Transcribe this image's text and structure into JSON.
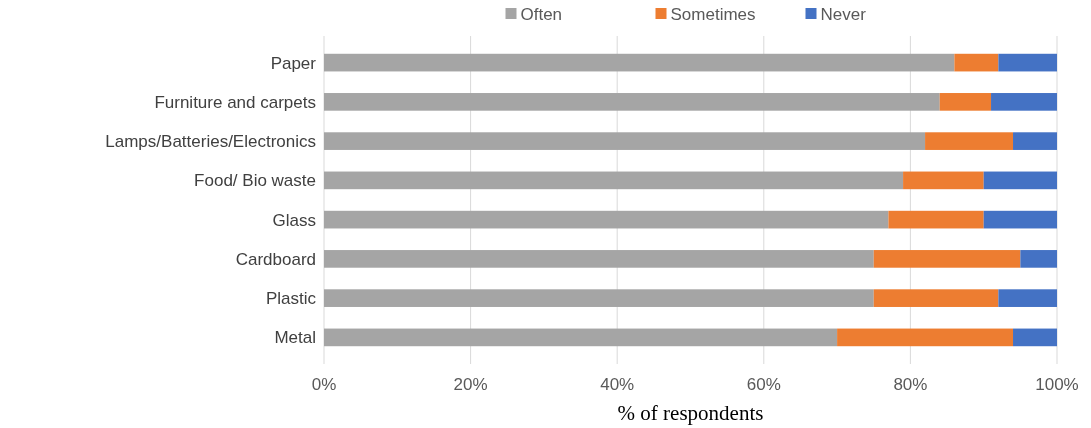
{
  "chart_data": {
    "type": "bar",
    "orientation": "horizontal",
    "stacked": true,
    "xlabel": "% of respondents",
    "categories": [
      "Paper",
      "Furniture and carpets",
      "Lamps/Batteries/Electronics",
      "Food/ Bio waste",
      "Glass",
      "Cardboard",
      "Plastic",
      "Metal"
    ],
    "series": [
      {
        "name": "Often",
        "color": "#a5a5a5",
        "values": [
          86,
          84,
          82,
          79,
          77,
          75,
          75,
          70
        ]
      },
      {
        "name": "Sometimes",
        "color": "#ed7d31",
        "values": [
          6,
          7,
          12,
          11,
          13,
          20,
          17,
          24
        ]
      },
      {
        "name": "Never",
        "color": "#4472c4",
        "values": [
          8,
          9,
          6,
          10,
          10,
          5,
          8,
          6
        ]
      }
    ],
    "xlim": [
      0,
      100
    ],
    "xticks": [
      {
        "value": 0,
        "label": "0%"
      },
      {
        "value": 20,
        "label": "20%"
      },
      {
        "value": 40,
        "label": "40%"
      },
      {
        "value": 60,
        "label": "60%"
      },
      {
        "value": 80,
        "label": "80%"
      },
      {
        "value": 100,
        "label": "100%"
      }
    ],
    "grid": "x",
    "legend": "top"
  }
}
